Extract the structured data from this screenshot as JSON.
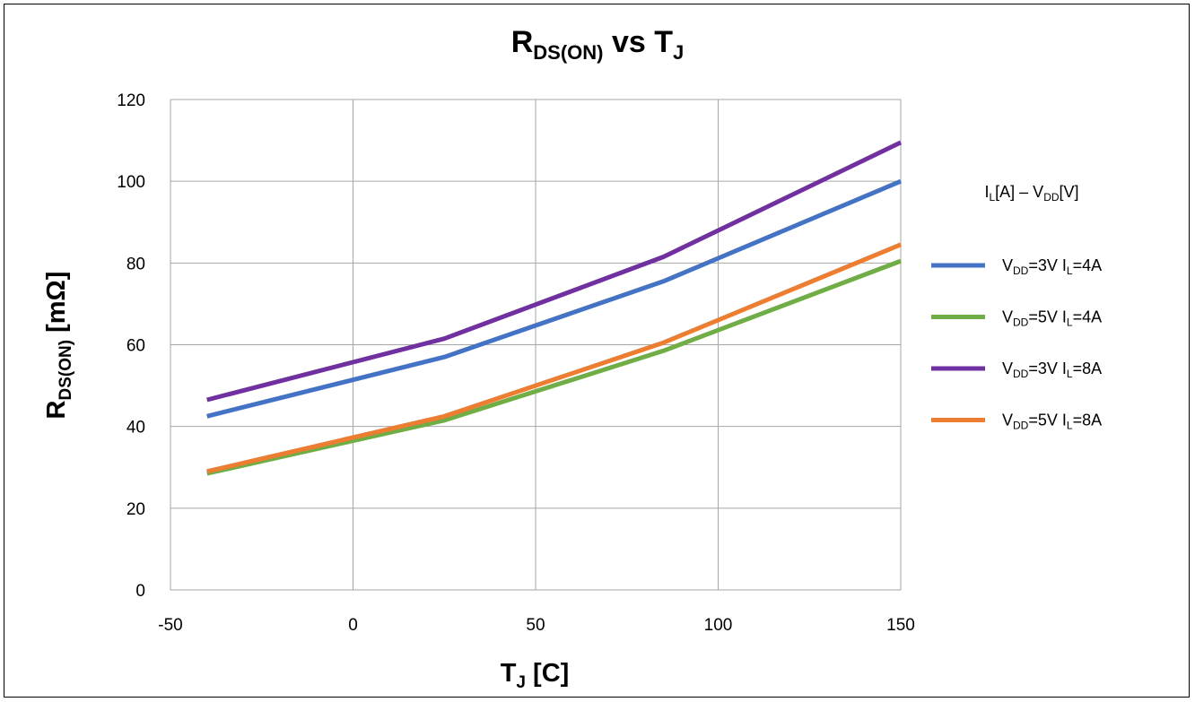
{
  "chart_data": {
    "type": "line",
    "title": {
      "main": "R",
      "main_sub": "DS(ON)",
      "mid": " vs T",
      "mid_sub": "J"
    },
    "xlabel": {
      "main": "T",
      "sub": "J",
      "rest": " [C]"
    },
    "ylabel": {
      "main": "R",
      "sub": "DS(ON)",
      "rest": " [mΩ]"
    },
    "xlim": [
      -50,
      150
    ],
    "ylim": [
      0,
      120
    ],
    "x_ticks": [
      "-50",
      "0",
      "50",
      "100",
      "150"
    ],
    "y_ticks": [
      "0",
      "20",
      "40",
      "60",
      "80",
      "100",
      "120"
    ],
    "grid": true,
    "legend_position": "right",
    "legend_title": {
      "p1": "I",
      "p1_sub": "L",
      "p2": "[A] – V",
      "p2_sub": "DD",
      "p3": "[V]"
    },
    "series": [
      {
        "name": "V_DD=3V I_L=4A",
        "legend": {
          "a": "V",
          "a_sub": "DD",
          "b": "=3V I",
          "b_sub": "L",
          "c": "=4A"
        },
        "color": "#4472C4",
        "x": [
          -40,
          25,
          85,
          150
        ],
        "y": [
          42.5,
          57.0,
          75.5,
          100.0
        ]
      },
      {
        "name": "V_DD=5V I_L=4A",
        "legend": {
          "a": "V",
          "a_sub": "DD",
          "b": "=5V I",
          "b_sub": "L",
          "c": "=4A"
        },
        "color": "#70AD47",
        "x": [
          -40,
          25,
          85,
          150
        ],
        "y": [
          28.5,
          41.5,
          58.5,
          80.5
        ]
      },
      {
        "name": "V_DD=3V I_L=8A",
        "legend": {
          "a": "V",
          "a_sub": "DD",
          "b": "=3V I",
          "b_sub": "L",
          "c": "=8A"
        },
        "color": "#7030A0",
        "x": [
          -40,
          25,
          85,
          150
        ],
        "y": [
          46.5,
          61.5,
          81.5,
          109.5
        ]
      },
      {
        "name": "V_DD=5V I_L=8A",
        "legend": {
          "a": "V",
          "a_sub": "DD",
          "b": "=5V I",
          "b_sub": "L",
          "c": "=8A"
        },
        "color": "#ED7D31",
        "x": [
          -40,
          25,
          85,
          150
        ],
        "y": [
          29.0,
          42.5,
          60.5,
          84.5
        ]
      }
    ]
  }
}
